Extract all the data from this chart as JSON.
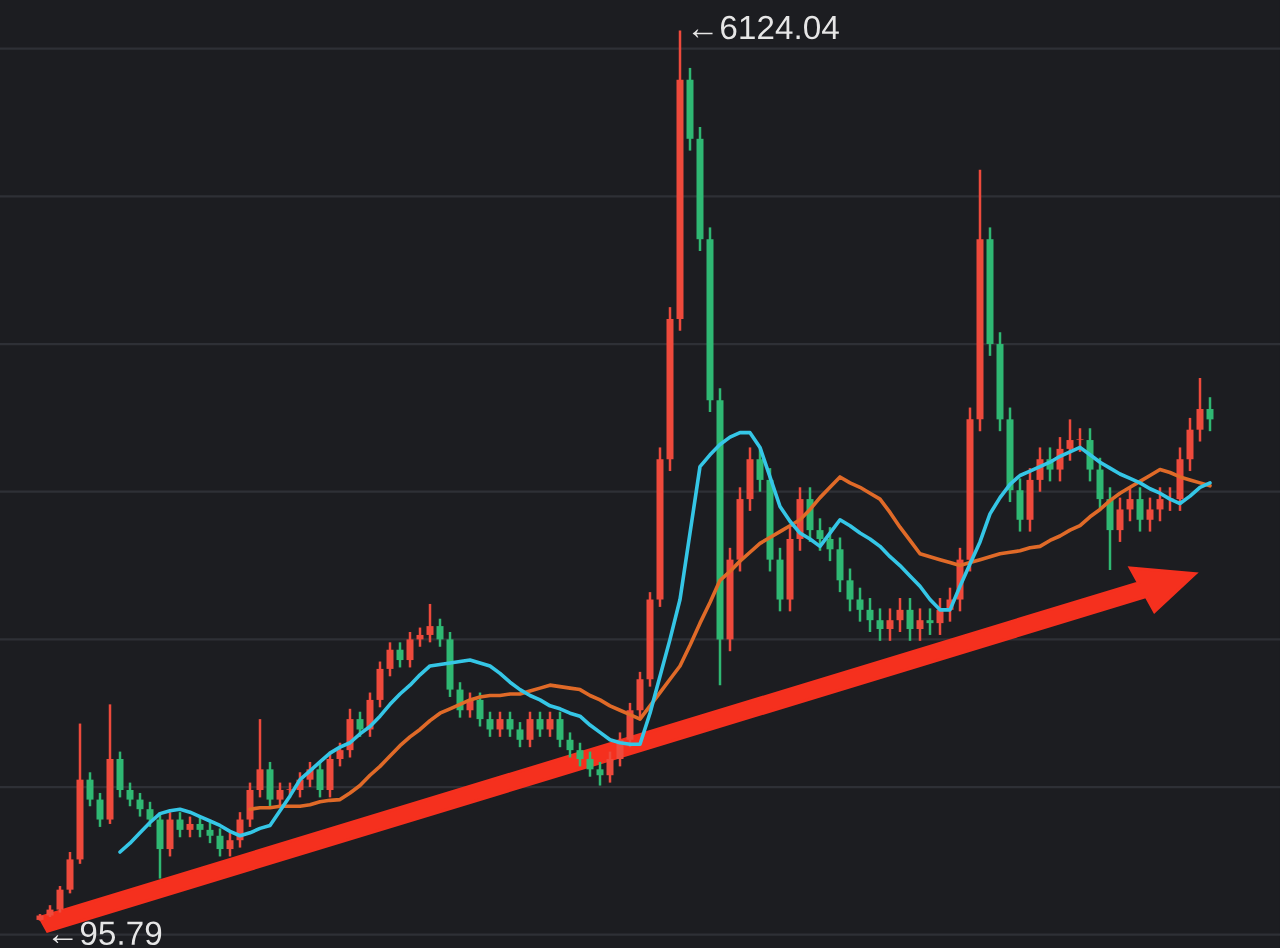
{
  "chart_data": {
    "type": "candlestick",
    "categories": [
      null,
      null,
      null,
      null,
      null,
      null,
      null,
      null,
      null,
      null,
      null,
      null,
      null,
      null,
      null,
      null,
      null,
      null,
      null,
      null,
      null,
      null,
      null,
      null,
      null,
      null,
      null,
      null,
      null,
      null,
      null,
      null,
      null,
      null,
      null,
      null,
      null,
      null,
      null,
      null,
      null,
      null,
      null,
      null,
      null,
      null,
      null,
      null,
      null,
      null,
      null,
      null,
      null,
      null,
      null,
      null,
      null,
      null,
      null,
      null,
      null,
      null,
      null,
      null,
      null,
      null,
      null,
      null,
      null,
      null,
      null,
      null,
      null,
      null,
      null,
      null,
      null,
      null,
      null,
      null,
      null,
      null,
      null,
      null,
      null,
      null,
      null,
      null,
      null,
      null,
      null,
      null,
      null,
      null,
      null,
      null,
      null,
      null,
      null,
      null,
      null,
      null,
      null,
      null,
      null,
      null,
      null,
      null,
      null,
      null,
      null,
      null,
      null,
      null,
      null,
      null,
      null,
      null
    ],
    "ohlc": [
      [
        100,
        140,
        95.79,
        130
      ],
      [
        130,
        200,
        120,
        170
      ],
      [
        170,
        330,
        150,
        305
      ],
      [
        305,
        560,
        280,
        510
      ],
      [
        510,
        1430,
        480,
        1050
      ],
      [
        1050,
        1100,
        870,
        915
      ],
      [
        915,
        960,
        730,
        780
      ],
      [
        780,
        1560,
        750,
        1190
      ],
      [
        1190,
        1240,
        930,
        980
      ],
      [
        980,
        1030,
        870,
        915
      ],
      [
        915,
        960,
        800,
        850
      ],
      [
        850,
        900,
        730,
        780
      ],
      [
        780,
        830,
        380,
        580
      ],
      [
        580,
        830,
        530,
        780
      ],
      [
        780,
        830,
        660,
        710
      ],
      [
        710,
        800,
        660,
        750
      ],
      [
        750,
        800,
        660,
        710
      ],
      [
        710,
        760,
        620,
        670
      ],
      [
        670,
        720,
        530,
        580
      ],
      [
        580,
        690,
        530,
        640
      ],
      [
        640,
        830,
        590,
        780
      ],
      [
        780,
        1030,
        730,
        980
      ],
      [
        980,
        1460,
        930,
        1120
      ],
      [
        1120,
        1170,
        870,
        915
      ],
      [
        915,
        1030,
        870,
        980
      ],
      [
        980,
        1030,
        930,
        980
      ],
      [
        980,
        1100,
        930,
        1050
      ],
      [
        1050,
        1170,
        1000,
        1120
      ],
      [
        1120,
        1170,
        930,
        980
      ],
      [
        980,
        1240,
        930,
        1190
      ],
      [
        1190,
        1300,
        1140,
        1250
      ],
      [
        1250,
        1530,
        1200,
        1460
      ],
      [
        1460,
        1510,
        1340,
        1390
      ],
      [
        1390,
        1640,
        1340,
        1590
      ],
      [
        1590,
        1850,
        1540,
        1800
      ],
      [
        1800,
        1980,
        1750,
        1930
      ],
      [
        1930,
        1980,
        1810,
        1860
      ],
      [
        1860,
        2050,
        1810,
        2000
      ],
      [
        2000,
        2080,
        1950,
        2030
      ],
      [
        2030,
        2240,
        1980,
        2090
      ],
      [
        2090,
        2140,
        1950,
        2000
      ],
      [
        2000,
        2050,
        1610,
        1660
      ],
      [
        1660,
        1710,
        1470,
        1520
      ],
      [
        1520,
        1640,
        1470,
        1590
      ],
      [
        1590,
        1640,
        1410,
        1460
      ],
      [
        1460,
        1510,
        1340,
        1390
      ],
      [
        1390,
        1510,
        1340,
        1460
      ],
      [
        1460,
        1510,
        1340,
        1390
      ],
      [
        1390,
        1440,
        1270,
        1320
      ],
      [
        1320,
        1510,
        1270,
        1460
      ],
      [
        1460,
        1510,
        1340,
        1390
      ],
      [
        1390,
        1510,
        1340,
        1460
      ],
      [
        1460,
        1510,
        1270,
        1320
      ],
      [
        1320,
        1370,
        1200,
        1250
      ],
      [
        1250,
        1300,
        1140,
        1190
      ],
      [
        1190,
        1240,
        1070,
        1120
      ],
      [
        1120,
        1170,
        1010,
        1080
      ],
      [
        1080,
        1240,
        1030,
        1190
      ],
      [
        1190,
        1370,
        1140,
        1320
      ],
      [
        1320,
        1570,
        1270,
        1520
      ],
      [
        1520,
        1780,
        1470,
        1730
      ],
      [
        1730,
        2320,
        1680,
        2270
      ],
      [
        2270,
        3300,
        2220,
        3220
      ],
      [
        3220,
        4250,
        3140,
        4170
      ],
      [
        4170,
        6124.04,
        4090,
        5790
      ],
      [
        5790,
        5870,
        5310,
        5390
      ],
      [
        5390,
        5470,
        4630,
        4710
      ],
      [
        4710,
        4790,
        3540,
        3620
      ],
      [
        3620,
        3700,
        1690,
        2000
      ],
      [
        2000,
        2620,
        1920,
        2540
      ],
      [
        2540,
        3030,
        2460,
        2950
      ],
      [
        2950,
        3300,
        2870,
        3220
      ],
      [
        3220,
        3300,
        3000,
        3080
      ],
      [
        3080,
        3160,
        2460,
        2540
      ],
      [
        2540,
        2620,
        2190,
        2270
      ],
      [
        2270,
        2760,
        2190,
        2680
      ],
      [
        2680,
        3030,
        2600,
        2950
      ],
      [
        2950,
        3030,
        2660,
        2740
      ],
      [
        2740,
        2820,
        2600,
        2680
      ],
      [
        2680,
        2760,
        2530,
        2610
      ],
      [
        2610,
        2690,
        2320,
        2400
      ],
      [
        2400,
        2480,
        2190,
        2270
      ],
      [
        2270,
        2350,
        2120,
        2200
      ],
      [
        2200,
        2280,
        2050,
        2130
      ],
      [
        2130,
        2210,
        1990,
        2070
      ],
      [
        2070,
        2210,
        1990,
        2130
      ],
      [
        2130,
        2280,
        2050,
        2200
      ],
      [
        2200,
        2280,
        1990,
        2070
      ],
      [
        2070,
        2210,
        1990,
        2130
      ],
      [
        2130,
        2210,
        2030,
        2110
      ],
      [
        2110,
        2280,
        2030,
        2200
      ],
      [
        2200,
        2350,
        2120,
        2270
      ],
      [
        2270,
        2620,
        2190,
        2540
      ],
      [
        2540,
        3570,
        2460,
        3490
      ],
      [
        3490,
        5180,
        3410,
        4710
      ],
      [
        4710,
        4790,
        3920,
        4000
      ],
      [
        4000,
        4080,
        3410,
        3490
      ],
      [
        3490,
        3570,
        2930,
        3010
      ],
      [
        3010,
        3090,
        2730,
        2810
      ],
      [
        2810,
        3160,
        2730,
        3080
      ],
      [
        3080,
        3300,
        3000,
        3220
      ],
      [
        3220,
        3300,
        3070,
        3150
      ],
      [
        3150,
        3370,
        3070,
        3290
      ],
      [
        3290,
        3490,
        3210,
        3350
      ],
      [
        3350,
        3430,
        3270,
        3350
      ],
      [
        3350,
        3430,
        3070,
        3150
      ],
      [
        3150,
        3230,
        2870,
        2950
      ],
      [
        2950,
        3030,
        2470,
        2740
      ],
      [
        2740,
        2960,
        2660,
        2880
      ],
      [
        2880,
        3030,
        2800,
        2950
      ],
      [
        2950,
        3030,
        2730,
        2810
      ],
      [
        2810,
        2960,
        2730,
        2880
      ],
      [
        2880,
        3030,
        2800,
        2950
      ],
      [
        2950,
        3030,
        2870,
        2950
      ],
      [
        2950,
        3300,
        2870,
        3220
      ],
      [
        3220,
        3500,
        3140,
        3420
      ],
      [
        3420,
        3770,
        3340,
        3560
      ],
      [
        3560,
        3640,
        3410,
        3490
      ]
    ],
    "series": [
      {
        "type": "line",
        "color": "#e06a28",
        "values": [
          null,
          null,
          null,
          null,
          null,
          null,
          null,
          null,
          null,
          null,
          null,
          null,
          null,
          null,
          null,
          null,
          null,
          null,
          null,
          null,
          null,
          850,
          860,
          860,
          870,
          870,
          870,
          880,
          900,
          910,
          915,
          960,
          1010,
          1080,
          1140,
          1210,
          1280,
          1340,
          1390,
          1450,
          1500,
          1530,
          1560,
          1590,
          1610,
          1620,
          1620,
          1630,
          1630,
          1650,
          1670,
          1690,
          1680,
          1670,
          1660,
          1620,
          1590,
          1550,
          1520,
          1490,
          1460,
          1550,
          1640,
          1730,
          1820,
          1960,
          2110,
          2250,
          2400,
          2460,
          2530,
          2590,
          2650,
          2690,
          2730,
          2770,
          2810,
          2880,
          2960,
          3030,
          3100,
          3060,
          3030,
          2990,
          2950,
          2860,
          2760,
          2670,
          2580,
          2560,
          2540,
          2520,
          2500,
          2520,
          2540,
          2560,
          2580,
          2590,
          2600,
          2620,
          2630,
          2670,
          2700,
          2740,
          2770,
          2830,
          2880,
          2940,
          2990,
          3030,
          3070,
          3110,
          3150,
          3130,
          3100,
          3080,
          3060,
          3040
        ]
      },
      {
        "type": "line",
        "color": "#35c6e6",
        "values": [
          null,
          null,
          null,
          null,
          null,
          null,
          null,
          null,
          560,
          620,
          690,
          760,
          820,
          840,
          850,
          830,
          800,
          770,
          740,
          700,
          670,
          690,
          720,
          740,
          840,
          940,
          1050,
          1110,
          1170,
          1230,
          1270,
          1300,
          1360,
          1410,
          1480,
          1560,
          1630,
          1690,
          1760,
          1820,
          1830,
          1840,
          1850,
          1860,
          1840,
          1820,
          1770,
          1710,
          1660,
          1620,
          1590,
          1550,
          1530,
          1500,
          1480,
          1420,
          1370,
          1320,
          1300,
          1290,
          1290,
          1500,
          1750,
          2000,
          2270,
          2720,
          3170,
          3250,
          3320,
          3370,
          3400,
          3400,
          3300,
          3100,
          2900,
          2800,
          2720,
          2680,
          2630,
          2720,
          2810,
          2770,
          2720,
          2680,
          2630,
          2560,
          2500,
          2430,
          2360,
          2270,
          2200,
          2200,
          2360,
          2510,
          2660,
          2850,
          2960,
          3050,
          3110,
          3140,
          3170,
          3200,
          3240,
          3270,
          3300,
          3250,
          3200,
          3160,
          3120,
          3090,
          3060,
          3020,
          2990,
          2950,
          2920,
          2970,
          3030,
          3060
        ]
      }
    ],
    "ylim": [
      -90,
      6330
    ],
    "yticks": [
      {
        "value": 0,
        "label": null
      },
      {
        "value": 1000,
        "label": null
      },
      {
        "value": 2000,
        "label": null
      },
      {
        "value": 3000,
        "label": null
      },
      {
        "value": 4000,
        "label": null
      },
      {
        "value": 5000,
        "label": null
      },
      {
        "value": 6000,
        "label": null
      }
    ],
    "grid": "y",
    "annotations": [
      "←6124.04",
      "←95.79"
    ]
  }
}
